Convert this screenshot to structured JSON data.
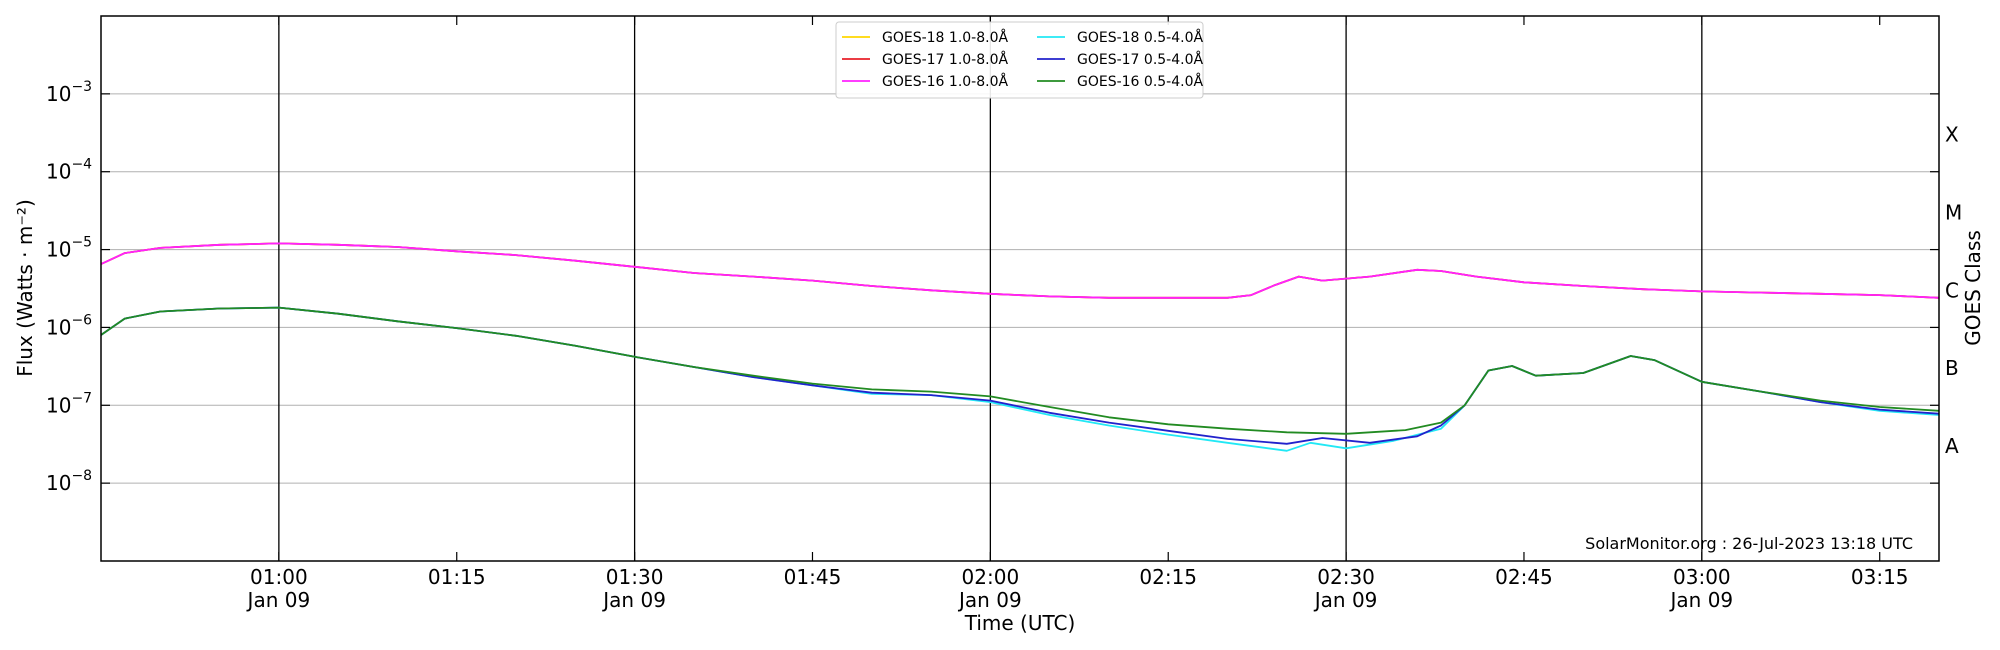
{
  "chart_data": {
    "type": "line",
    "xlabel": "Time (UTC)",
    "ylabel": "Flux (Watts · m⁻²)",
    "ylabel_right": "GOES Class",
    "y_scale": "log",
    "ylim": [
      1e-09,
      0.01
    ],
    "xlim": [
      "00:45",
      "03:20"
    ],
    "grid": "horizontal",
    "legend_placement": "top-center",
    "credit": "SolarMonitor.org : 26-Jul-2023 13:18 UTC",
    "y_ticks": [
      {
        "value": 0.001,
        "base": "10",
        "exp": "−3"
      },
      {
        "value": 0.0001,
        "base": "10",
        "exp": "−4"
      },
      {
        "value": 1e-05,
        "base": "10",
        "exp": "−5"
      },
      {
        "value": 1e-06,
        "base": "10",
        "exp": "−6"
      },
      {
        "value": 1e-07,
        "base": "10",
        "exp": "−7"
      },
      {
        "value": 1e-08,
        "base": "10",
        "exp": "−8"
      }
    ],
    "x_ticks": [
      {
        "value": "01:00",
        "line1": "01:00",
        "line2": "Jan 09"
      },
      {
        "value": "01:15",
        "line1": "01:15",
        "line2": ""
      },
      {
        "value": "01:30",
        "line1": "01:30",
        "line2": "Jan 09"
      },
      {
        "value": "01:45",
        "line1": "01:45",
        "line2": ""
      },
      {
        "value": "02:00",
        "line1": "02:00",
        "line2": "Jan 09"
      },
      {
        "value": "02:15",
        "line1": "02:15",
        "line2": ""
      },
      {
        "value": "02:30",
        "line1": "02:30",
        "line2": "Jan 09"
      },
      {
        "value": "02:45",
        "line1": "02:45",
        "line2": ""
      },
      {
        "value": "03:00",
        "line1": "03:00",
        "line2": "Jan 09"
      },
      {
        "value": "03:15",
        "line1": "03:15",
        "line2": ""
      }
    ],
    "vertical_lines": [
      "01:00",
      "01:30",
      "02:00",
      "02:30",
      "03:00"
    ],
    "goes_classes": [
      {
        "label": "X",
        "flux": 0.0003
      },
      {
        "label": "M",
        "flux": 3e-05
      },
      {
        "label": "C",
        "flux": 3e-06
      },
      {
        "label": "B",
        "flux": 3e-07
      },
      {
        "label": "A",
        "flux": 3e-08
      }
    ],
    "series": [
      {
        "name": "GOES-18 1.0-8.0Å",
        "color": "#ffd700",
        "points": [
          [
            "00:45",
            6.5e-06
          ],
          [
            "00:47",
            9e-06
          ],
          [
            "00:50",
            1.05e-05
          ],
          [
            "00:55",
            1.15e-05
          ],
          [
            "01:00",
            1.2e-05
          ],
          [
            "01:05",
            1.15e-05
          ],
          [
            "01:10",
            1.08e-05
          ],
          [
            "01:15",
            9.5e-06
          ],
          [
            "01:20",
            8.5e-06
          ],
          [
            "01:25",
            7.2e-06
          ],
          [
            "01:30",
            6e-06
          ],
          [
            "01:35",
            5e-06
          ],
          [
            "01:40",
            4.5e-06
          ],
          [
            "01:45",
            4e-06
          ],
          [
            "01:50",
            3.4e-06
          ],
          [
            "01:55",
            3e-06
          ],
          [
            "02:00",
            2.7e-06
          ],
          [
            "02:05",
            2.5e-06
          ],
          [
            "02:10",
            2.4e-06
          ],
          [
            "02:15",
            2.4e-06
          ],
          [
            "02:20",
            2.4e-06
          ],
          [
            "02:22",
            2.6e-06
          ],
          [
            "02:24",
            3.5e-06
          ],
          [
            "02:26",
            4.5e-06
          ],
          [
            "02:28",
            4e-06
          ],
          [
            "02:32",
            4.5e-06
          ],
          [
            "02:36",
            5.5e-06
          ],
          [
            "02:38",
            5.3e-06
          ],
          [
            "02:41",
            4.5e-06
          ],
          [
            "02:45",
            3.8e-06
          ],
          [
            "02:50",
            3.4e-06
          ],
          [
            "02:55",
            3.1e-06
          ],
          [
            "03:00",
            2.9e-06
          ],
          [
            "03:05",
            2.8e-06
          ],
          [
            "03:10",
            2.7e-06
          ],
          [
            "03:15",
            2.6e-06
          ],
          [
            "03:20",
            2.4e-06
          ]
        ]
      },
      {
        "name": "GOES-17 1.0-8.0Å",
        "color": "#e8202a",
        "points": [
          [
            "00:45",
            6.5e-06
          ],
          [
            "00:47",
            9e-06
          ],
          [
            "00:50",
            1.05e-05
          ],
          [
            "00:55",
            1.15e-05
          ],
          [
            "01:00",
            1.2e-05
          ],
          [
            "01:05",
            1.15e-05
          ],
          [
            "01:10",
            1.08e-05
          ],
          [
            "01:15",
            9.5e-06
          ],
          [
            "01:20",
            8.5e-06
          ],
          [
            "01:25",
            7.2e-06
          ],
          [
            "01:30",
            6e-06
          ],
          [
            "01:35",
            5e-06
          ],
          [
            "01:40",
            4.5e-06
          ],
          [
            "01:45",
            4e-06
          ],
          [
            "01:50",
            3.4e-06
          ],
          [
            "01:55",
            3e-06
          ],
          [
            "02:00",
            2.7e-06
          ],
          [
            "02:05",
            2.5e-06
          ],
          [
            "02:10",
            2.4e-06
          ],
          [
            "02:15",
            2.4e-06
          ],
          [
            "02:20",
            2.4e-06
          ],
          [
            "02:22",
            2.6e-06
          ],
          [
            "02:24",
            3.5e-06
          ],
          [
            "02:26",
            4.5e-06
          ],
          [
            "02:28",
            4e-06
          ],
          [
            "02:32",
            4.5e-06
          ],
          [
            "02:36",
            5.5e-06
          ],
          [
            "02:38",
            5.3e-06
          ],
          [
            "02:41",
            4.5e-06
          ],
          [
            "02:45",
            3.8e-06
          ],
          [
            "02:50",
            3.4e-06
          ],
          [
            "02:55",
            3.1e-06
          ],
          [
            "03:00",
            2.9e-06
          ],
          [
            "03:05",
            2.8e-06
          ],
          [
            "03:10",
            2.7e-06
          ],
          [
            "03:15",
            2.6e-06
          ],
          [
            "03:20",
            2.4e-06
          ]
        ]
      },
      {
        "name": "GOES-16 1.0-8.0Å",
        "color": "#ff22ff",
        "points": [
          [
            "00:45",
            6.5e-06
          ],
          [
            "00:47",
            9e-06
          ],
          [
            "00:50",
            1.05e-05
          ],
          [
            "00:55",
            1.15e-05
          ],
          [
            "01:00",
            1.2e-05
          ],
          [
            "01:05",
            1.15e-05
          ],
          [
            "01:10",
            1.08e-05
          ],
          [
            "01:15",
            9.5e-06
          ],
          [
            "01:20",
            8.5e-06
          ],
          [
            "01:25",
            7.2e-06
          ],
          [
            "01:30",
            6e-06
          ],
          [
            "01:35",
            5e-06
          ],
          [
            "01:40",
            4.5e-06
          ],
          [
            "01:45",
            4e-06
          ],
          [
            "01:50",
            3.4e-06
          ],
          [
            "01:55",
            3e-06
          ],
          [
            "02:00",
            2.7e-06
          ],
          [
            "02:05",
            2.5e-06
          ],
          [
            "02:10",
            2.4e-06
          ],
          [
            "02:15",
            2.4e-06
          ],
          [
            "02:20",
            2.4e-06
          ],
          [
            "02:22",
            2.6e-06
          ],
          [
            "02:24",
            3.5e-06
          ],
          [
            "02:26",
            4.5e-06
          ],
          [
            "02:28",
            4e-06
          ],
          [
            "02:32",
            4.5e-06
          ],
          [
            "02:36",
            5.5e-06
          ],
          [
            "02:38",
            5.3e-06
          ],
          [
            "02:41",
            4.5e-06
          ],
          [
            "02:45",
            3.8e-06
          ],
          [
            "02:50",
            3.4e-06
          ],
          [
            "02:55",
            3.1e-06
          ],
          [
            "03:00",
            2.9e-06
          ],
          [
            "03:05",
            2.8e-06
          ],
          [
            "03:10",
            2.7e-06
          ],
          [
            "03:15",
            2.6e-06
          ],
          [
            "03:20",
            2.4e-06
          ]
        ]
      },
      {
        "name": "GOES-18 0.5-4.0Å",
        "color": "#22e8f5",
        "points": [
          [
            "00:45",
            8e-07
          ],
          [
            "00:47",
            1.3e-06
          ],
          [
            "00:50",
            1.6e-06
          ],
          [
            "00:55",
            1.75e-06
          ],
          [
            "01:00",
            1.8e-06
          ],
          [
            "01:05",
            1.5e-06
          ],
          [
            "01:10",
            1.2e-06
          ],
          [
            "01:15",
            9.8e-07
          ],
          [
            "01:20",
            7.8e-07
          ],
          [
            "01:25",
            5.8e-07
          ],
          [
            "01:30",
            4.2e-07
          ],
          [
            "01:35",
            3.1e-07
          ],
          [
            "01:40",
            2.3e-07
          ],
          [
            "01:45",
            1.8e-07
          ],
          [
            "01:50",
            1.4e-07
          ],
          [
            "01:55",
            1.35e-07
          ],
          [
            "02:00",
            1.1e-07
          ],
          [
            "02:05",
            7.5e-08
          ],
          [
            "02:10",
            5.5e-08
          ],
          [
            "02:15",
            4.2e-08
          ],
          [
            "02:20",
            3.3e-08
          ],
          [
            "02:25",
            2.6e-08
          ],
          [
            "02:27",
            3.3e-08
          ],
          [
            "02:30",
            2.8e-08
          ],
          [
            "02:34",
            3.5e-08
          ],
          [
            "02:38",
            5e-08
          ],
          [
            "02:40",
            1e-07
          ],
          [
            "02:42",
            2.8e-07
          ],
          [
            "02:44",
            3.2e-07
          ],
          [
            "02:46",
            2.4e-07
          ],
          [
            "02:50",
            2.6e-07
          ],
          [
            "02:54",
            4.3e-07
          ],
          [
            "02:56",
            3.8e-07
          ],
          [
            "03:00",
            2e-07
          ],
          [
            "03:05",
            1.5e-07
          ],
          [
            "03:10",
            1.1e-07
          ],
          [
            "03:15",
            8.5e-08
          ],
          [
            "03:20",
            7.5e-08
          ]
        ]
      },
      {
        "name": "GOES-17 0.5-4.0Å",
        "color": "#2222cc",
        "points": [
          [
            "00:45",
            8e-07
          ],
          [
            "00:47",
            1.3e-06
          ],
          [
            "00:50",
            1.6e-06
          ],
          [
            "00:55",
            1.75e-06
          ],
          [
            "01:00",
            1.8e-06
          ],
          [
            "01:05",
            1.5e-06
          ],
          [
            "01:10",
            1.2e-06
          ],
          [
            "01:15",
            9.8e-07
          ],
          [
            "01:20",
            7.8e-07
          ],
          [
            "01:25",
            5.8e-07
          ],
          [
            "01:30",
            4.2e-07
          ],
          [
            "01:35",
            3.1e-07
          ],
          [
            "01:40",
            2.3e-07
          ],
          [
            "01:45",
            1.8e-07
          ],
          [
            "01:50",
            1.45e-07
          ],
          [
            "01:55",
            1.35e-07
          ],
          [
            "02:00",
            1.15e-07
          ],
          [
            "02:05",
            8e-08
          ],
          [
            "02:10",
            6e-08
          ],
          [
            "02:15",
            4.7e-08
          ],
          [
            "02:20",
            3.7e-08
          ],
          [
            "02:25",
            3.2e-08
          ],
          [
            "02:28",
            3.8e-08
          ],
          [
            "02:32",
            3.3e-08
          ],
          [
            "02:36",
            4e-08
          ],
          [
            "02:38",
            5.5e-08
          ],
          [
            "02:40",
            1e-07
          ],
          [
            "02:42",
            2.8e-07
          ],
          [
            "02:44",
            3.2e-07
          ],
          [
            "02:46",
            2.4e-07
          ],
          [
            "02:50",
            2.6e-07
          ],
          [
            "02:54",
            4.3e-07
          ],
          [
            "02:56",
            3.8e-07
          ],
          [
            "03:00",
            2e-07
          ],
          [
            "03:05",
            1.5e-07
          ],
          [
            "03:10",
            1.1e-07
          ],
          [
            "03:15",
            8.8e-08
          ],
          [
            "03:20",
            7.8e-08
          ]
        ]
      },
      {
        "name": "GOES-16 0.5-4.0Å",
        "color": "#228b22",
        "points": [
          [
            "00:45",
            8e-07
          ],
          [
            "00:47",
            1.3e-06
          ],
          [
            "00:50",
            1.6e-06
          ],
          [
            "00:55",
            1.75e-06
          ],
          [
            "01:00",
            1.8e-06
          ],
          [
            "01:05",
            1.5e-06
          ],
          [
            "01:10",
            1.2e-06
          ],
          [
            "01:15",
            9.8e-07
          ],
          [
            "01:20",
            7.8e-07
          ],
          [
            "01:25",
            5.8e-07
          ],
          [
            "01:30",
            4.2e-07
          ],
          [
            "01:35",
            3.1e-07
          ],
          [
            "01:40",
            2.4e-07
          ],
          [
            "01:45",
            1.9e-07
          ],
          [
            "01:50",
            1.6e-07
          ],
          [
            "01:55",
            1.5e-07
          ],
          [
            "02:00",
            1.3e-07
          ],
          [
            "02:05",
            9.5e-08
          ],
          [
            "02:10",
            7e-08
          ],
          [
            "02:15",
            5.7e-08
          ],
          [
            "02:20",
            5e-08
          ],
          [
            "02:25",
            4.5e-08
          ],
          [
            "02:30",
            4.3e-08
          ],
          [
            "02:35",
            4.8e-08
          ],
          [
            "02:38",
            6e-08
          ],
          [
            "02:40",
            1e-07
          ],
          [
            "02:42",
            2.8e-07
          ],
          [
            "02:44",
            3.2e-07
          ],
          [
            "02:46",
            2.4e-07
          ],
          [
            "02:50",
            2.6e-07
          ],
          [
            "02:54",
            4.3e-07
          ],
          [
            "02:56",
            3.8e-07
          ],
          [
            "03:00",
            2e-07
          ],
          [
            "03:05",
            1.5e-07
          ],
          [
            "03:10",
            1.15e-07
          ],
          [
            "03:15",
            9.5e-08
          ],
          [
            "03:20",
            8.5e-08
          ]
        ]
      }
    ]
  }
}
